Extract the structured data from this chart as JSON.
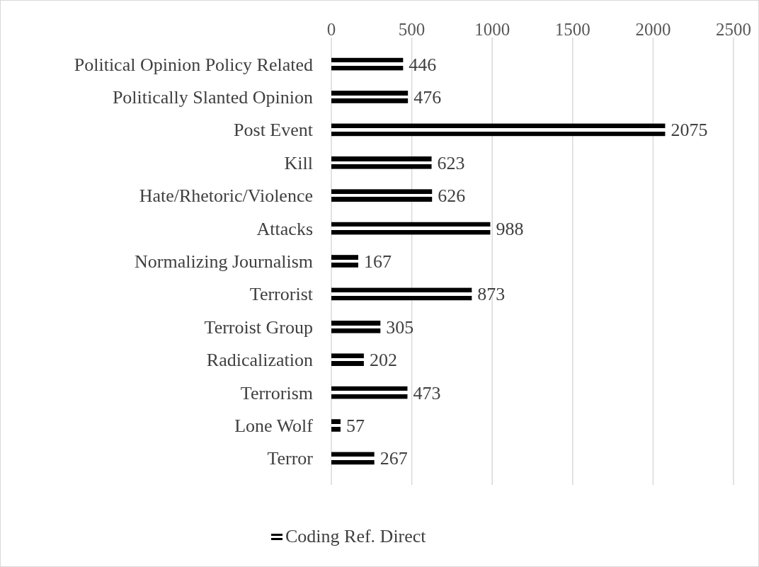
{
  "chart_data": {
    "type": "bar",
    "orientation": "horizontal",
    "categories": [
      "Political Opinion Policy Related",
      "Politically Slanted Opinion",
      "Post Event",
      "Kill",
      "Hate/Rhetoric/Violence",
      "Attacks",
      "Normalizing Journalism",
      "Terrorist",
      "Terroist Group",
      "Radicalization",
      "Terrorism",
      "Lone Wolf",
      "Terror"
    ],
    "series": [
      {
        "name": "Coding Ref. Direct",
        "color": "#000000",
        "values": [
          446,
          476,
          2075,
          623,
          626,
          988,
          167,
          873,
          305,
          202,
          473,
          57,
          267
        ]
      }
    ],
    "xlim": [
      0,
      2500
    ],
    "xticks": [
      0,
      500,
      1000,
      1500,
      2000,
      2500
    ],
    "grid": "x",
    "legend": "bottom",
    "data_labels": true
  }
}
